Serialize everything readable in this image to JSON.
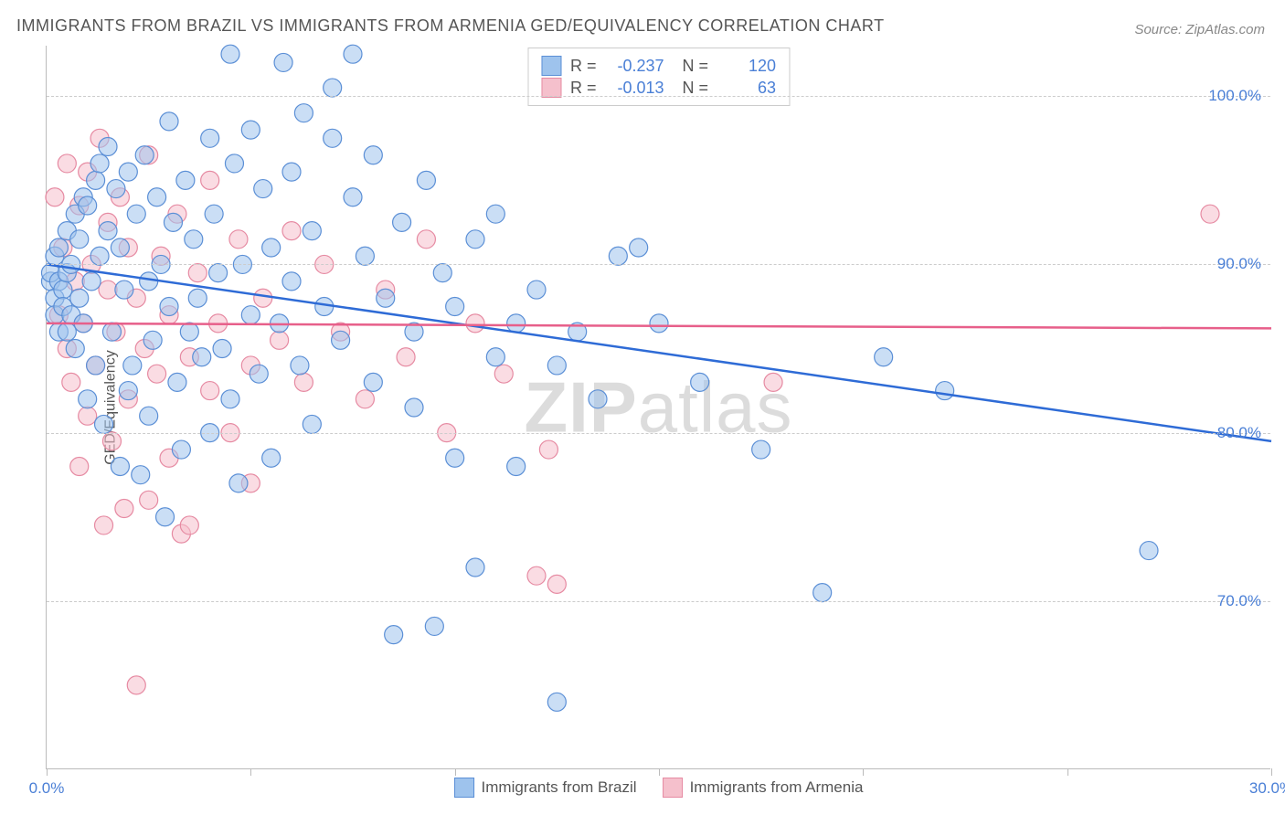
{
  "title": "IMMIGRANTS FROM BRAZIL VS IMMIGRANTS FROM ARMENIA GED/EQUIVALENCY CORRELATION CHART",
  "source": "Source: ZipAtlas.com",
  "ylabel": "GED/Equivalency",
  "watermark_bold": "ZIP",
  "watermark_rest": "atlas",
  "chart": {
    "type": "scatter",
    "xlim": [
      0,
      30
    ],
    "ylim": [
      60,
      103
    ],
    "xticks": [
      0,
      5,
      10,
      15,
      20,
      25,
      30
    ],
    "xtick_labels": {
      "0": "0.0%",
      "30": "30.0%"
    },
    "yticks": [
      70,
      80,
      90,
      100
    ],
    "ytick_labels": {
      "70": "70.0%",
      "80": "80.0%",
      "90": "90.0%",
      "100": "100.0%"
    },
    "grid_color": "#cccccc",
    "axis_color": "#bbbbbb",
    "background_color": "#ffffff",
    "tick_label_color": "#4a7fd6",
    "marker_radius": 10,
    "marker_opacity": 0.55,
    "regression_line_width": 2.5,
    "series": [
      {
        "name": "Immigrants from Brazil",
        "color_fill": "#9ec3ed",
        "color_stroke": "#5b8fd6",
        "regression_color": "#2e6bd6",
        "R": -0.237,
        "N": 120,
        "regression": {
          "y_at_x0": 90.0,
          "y_at_xmax": 79.5
        },
        "points": [
          [
            0.1,
            89.0
          ],
          [
            0.1,
            89.5
          ],
          [
            0.2,
            88.0
          ],
          [
            0.2,
            90.5
          ],
          [
            0.2,
            87.0
          ],
          [
            0.3,
            89.0
          ],
          [
            0.3,
            86.0
          ],
          [
            0.3,
            91.0
          ],
          [
            0.4,
            88.5
          ],
          [
            0.4,
            87.5
          ],
          [
            0.5,
            89.5
          ],
          [
            0.5,
            86.0
          ],
          [
            0.5,
            92.0
          ],
          [
            0.6,
            90.0
          ],
          [
            0.6,
            87.0
          ],
          [
            0.7,
            93.0
          ],
          [
            0.7,
            85.0
          ],
          [
            0.8,
            91.5
          ],
          [
            0.8,
            88.0
          ],
          [
            0.9,
            94.0
          ],
          [
            0.9,
            86.5
          ],
          [
            1.0,
            93.5
          ],
          [
            1.0,
            82.0
          ],
          [
            1.1,
            89.0
          ],
          [
            1.2,
            95.0
          ],
          [
            1.2,
            84.0
          ],
          [
            1.3,
            96.0
          ],
          [
            1.3,
            90.5
          ],
          [
            1.4,
            80.5
          ],
          [
            1.5,
            92.0
          ],
          [
            1.5,
            97.0
          ],
          [
            1.6,
            86.0
          ],
          [
            1.7,
            94.5
          ],
          [
            1.8,
            78.0
          ],
          [
            1.8,
            91.0
          ],
          [
            1.9,
            88.5
          ],
          [
            2.0,
            82.5
          ],
          [
            2.0,
            95.5
          ],
          [
            2.1,
            84.0
          ],
          [
            2.2,
            93.0
          ],
          [
            2.3,
            77.5
          ],
          [
            2.4,
            96.5
          ],
          [
            2.5,
            89.0
          ],
          [
            2.5,
            81.0
          ],
          [
            2.6,
            85.5
          ],
          [
            2.7,
            94.0
          ],
          [
            2.8,
            90.0
          ],
          [
            2.9,
            75.0
          ],
          [
            3.0,
            87.5
          ],
          [
            3.0,
            98.5
          ],
          [
            3.1,
            92.5
          ],
          [
            3.2,
            83.0
          ],
          [
            3.3,
            79.0
          ],
          [
            3.4,
            95.0
          ],
          [
            3.5,
            86.0
          ],
          [
            3.6,
            91.5
          ],
          [
            3.7,
            88.0
          ],
          [
            3.8,
            84.5
          ],
          [
            4.0,
            97.5
          ],
          [
            4.0,
            80.0
          ],
          [
            4.1,
            93.0
          ],
          [
            4.2,
            89.5
          ],
          [
            4.3,
            85.0
          ],
          [
            4.5,
            82.0
          ],
          [
            4.5,
            102.5
          ],
          [
            4.6,
            96.0
          ],
          [
            4.7,
            77.0
          ],
          [
            4.8,
            90.0
          ],
          [
            5.0,
            87.0
          ],
          [
            5.0,
            98.0
          ],
          [
            5.2,
            83.5
          ],
          [
            5.3,
            94.5
          ],
          [
            5.5,
            91.0
          ],
          [
            5.5,
            78.5
          ],
          [
            5.7,
            86.5
          ],
          [
            5.8,
            102.0
          ],
          [
            6.0,
            89.0
          ],
          [
            6.0,
            95.5
          ],
          [
            6.2,
            84.0
          ],
          [
            6.3,
            99.0
          ],
          [
            6.5,
            92.0
          ],
          [
            6.5,
            80.5
          ],
          [
            6.8,
            87.5
          ],
          [
            7.0,
            97.5
          ],
          [
            7.0,
            100.5
          ],
          [
            7.2,
            85.5
          ],
          [
            7.5,
            94.0
          ],
          [
            7.5,
            102.5
          ],
          [
            7.8,
            90.5
          ],
          [
            8.0,
            83.0
          ],
          [
            8.0,
            96.5
          ],
          [
            8.3,
            88.0
          ],
          [
            8.5,
            68.0
          ],
          [
            8.7,
            92.5
          ],
          [
            9.0,
            81.5
          ],
          [
            9.0,
            86.0
          ],
          [
            9.3,
            95.0
          ],
          [
            9.5,
            68.5
          ],
          [
            9.7,
            89.5
          ],
          [
            10.0,
            78.5
          ],
          [
            10.0,
            87.5
          ],
          [
            10.5,
            72.0
          ],
          [
            10.5,
            91.5
          ],
          [
            11.0,
            84.5
          ],
          [
            11.0,
            93.0
          ],
          [
            11.5,
            78.0
          ],
          [
            11.5,
            86.5
          ],
          [
            12.0,
            88.5
          ],
          [
            12.5,
            84.0
          ],
          [
            12.5,
            64.0
          ],
          [
            13.0,
            86.0
          ],
          [
            13.5,
            82.0
          ],
          [
            14.0,
            90.5
          ],
          [
            14.5,
            91.0
          ],
          [
            15.0,
            86.5
          ],
          [
            16.0,
            83.0
          ],
          [
            17.5,
            79.0
          ],
          [
            19.0,
            70.5
          ],
          [
            20.5,
            84.5
          ],
          [
            22.0,
            82.5
          ],
          [
            27.0,
            73.0
          ]
        ]
      },
      {
        "name": "Immigrants from Armenia",
        "color_fill": "#f5c0cc",
        "color_stroke": "#e68aa2",
        "regression_color": "#e75f8a",
        "R": -0.013,
        "N": 63,
        "regression": {
          "y_at_x0": 86.5,
          "y_at_xmax": 86.2
        },
        "points": [
          [
            0.2,
            94.0
          ],
          [
            0.3,
            87.0
          ],
          [
            0.4,
            91.0
          ],
          [
            0.5,
            85.0
          ],
          [
            0.5,
            96.0
          ],
          [
            0.6,
            83.0
          ],
          [
            0.7,
            89.0
          ],
          [
            0.8,
            93.5
          ],
          [
            0.8,
            78.0
          ],
          [
            0.9,
            86.5
          ],
          [
            1.0,
            95.5
          ],
          [
            1.0,
            81.0
          ],
          [
            1.1,
            90.0
          ],
          [
            1.2,
            84.0
          ],
          [
            1.3,
            97.5
          ],
          [
            1.4,
            74.5
          ],
          [
            1.5,
            88.5
          ],
          [
            1.5,
            92.5
          ],
          [
            1.6,
            79.5
          ],
          [
            1.7,
            86.0
          ],
          [
            1.8,
            94.0
          ],
          [
            1.9,
            75.5
          ],
          [
            2.0,
            82.0
          ],
          [
            2.0,
            91.0
          ],
          [
            2.2,
            65.0
          ],
          [
            2.2,
            88.0
          ],
          [
            2.4,
            85.0
          ],
          [
            2.5,
            76.0
          ],
          [
            2.5,
            96.5
          ],
          [
            2.7,
            83.5
          ],
          [
            2.8,
            90.5
          ],
          [
            3.0,
            87.0
          ],
          [
            3.0,
            78.5
          ],
          [
            3.2,
            93.0
          ],
          [
            3.3,
            74.0
          ],
          [
            3.5,
            84.5
          ],
          [
            3.5,
            74.5
          ],
          [
            3.7,
            89.5
          ],
          [
            4.0,
            82.5
          ],
          [
            4.0,
            95.0
          ],
          [
            4.2,
            86.5
          ],
          [
            4.5,
            80.0
          ],
          [
            4.7,
            91.5
          ],
          [
            5.0,
            84.0
          ],
          [
            5.0,
            77.0
          ],
          [
            5.3,
            88.0
          ],
          [
            5.7,
            85.5
          ],
          [
            6.0,
            92.0
          ],
          [
            6.3,
            83.0
          ],
          [
            6.8,
            90.0
          ],
          [
            7.2,
            86.0
          ],
          [
            7.8,
            82.0
          ],
          [
            8.3,
            88.5
          ],
          [
            8.8,
            84.5
          ],
          [
            9.3,
            91.5
          ],
          [
            9.8,
            80.0
          ],
          [
            10.5,
            86.5
          ],
          [
            11.2,
            83.5
          ],
          [
            12.0,
            71.5
          ],
          [
            12.3,
            79.0
          ],
          [
            12.5,
            71.0
          ],
          [
            17.8,
            83.0
          ],
          [
            28.5,
            93.0
          ]
        ]
      }
    ]
  },
  "legend_box": {
    "rows": [
      {
        "swatch_fill": "#9ec3ed",
        "swatch_stroke": "#5b8fd6",
        "r_label": "R =",
        "r_val": "-0.237",
        "n_label": "N =",
        "n_val": "120"
      },
      {
        "swatch_fill": "#f5c0cc",
        "swatch_stroke": "#e68aa2",
        "r_label": "R =",
        "r_val": "-0.013",
        "n_label": "N =",
        "n_val": "63"
      }
    ]
  },
  "legend_bottom": {
    "items": [
      {
        "swatch_fill": "#9ec3ed",
        "swatch_stroke": "#5b8fd6",
        "label": "Immigrants from Brazil"
      },
      {
        "swatch_fill": "#f5c0cc",
        "swatch_stroke": "#e68aa2",
        "label": "Immigrants from Armenia"
      }
    ]
  }
}
